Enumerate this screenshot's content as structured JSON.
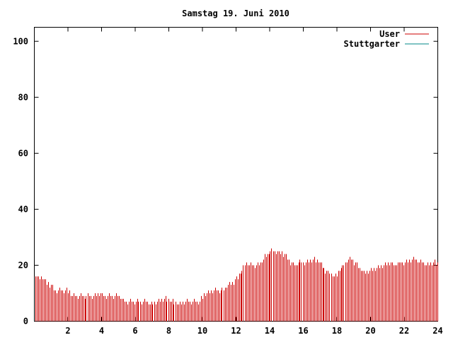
{
  "chart_data": {
    "type": "bar",
    "title": "Samstag 19. Juni 2010",
    "xlabel": "",
    "ylabel": "",
    "xlim": [
      0,
      24
    ],
    "ylim": [
      0,
      105
    ],
    "x_ticks": [
      "2",
      "4",
      "6",
      "8",
      "10",
      "12",
      "14",
      "16",
      "18",
      "20",
      "22",
      "24"
    ],
    "y_ticks": [
      "0",
      "20",
      "40",
      "60",
      "80",
      "100"
    ],
    "grid": false,
    "legend_position": "top-right",
    "colors": {
      "User": "#cc0000",
      "Stuttgarter": "#008888"
    },
    "series": [
      {
        "name": "User",
        "anchors_x": [
          0,
          0.2,
          0.4,
          0.6,
          0.9,
          1.2,
          1.5,
          1.9,
          2.3,
          2.6,
          3.0,
          3.5,
          3.9,
          4.2,
          4.5,
          5.0,
          5.4,
          5.8,
          6.2,
          6.6,
          7.0,
          7.4,
          7.8,
          8.2,
          8.6,
          9.0,
          9.5,
          9.8,
          10.0,
          10.5,
          11.0,
          11.3,
          11.6,
          12.0,
          12.3,
          12.6,
          12.9,
          13.3,
          13.7,
          14.0,
          14.4,
          14.8,
          15.2,
          15.5,
          15.8,
          16.2,
          16.6,
          17.0,
          17.3,
          17.6,
          17.9,
          18.2,
          18.5,
          18.8,
          19.0,
          19.3,
          19.6,
          19.9,
          20.2,
          20.6,
          21.0,
          21.4,
          21.8,
          22.2,
          22.6,
          23.0,
          23.4,
          23.8,
          24.0
        ],
        "anchors_y": [
          17,
          15,
          16,
          14,
          13,
          11,
          11,
          11,
          9,
          9,
          9,
          9,
          10,
          9,
          9,
          9,
          7,
          7,
          7,
          7,
          6,
          7,
          8,
          7,
          6,
          7,
          7,
          7,
          9,
          11,
          11,
          12,
          13,
          15,
          18,
          21,
          20,
          20,
          23,
          25,
          25,
          24,
          21,
          20,
          21,
          21,
          22,
          21,
          18,
          17,
          16,
          19,
          21,
          23,
          21,
          19,
          17,
          18,
          19,
          20,
          21,
          20,
          21,
          21,
          22,
          21,
          20,
          21,
          20
        ]
      },
      {
        "name": "Stuttgarter",
        "anchors_x": [],
        "anchors_y": []
      }
    ]
  }
}
